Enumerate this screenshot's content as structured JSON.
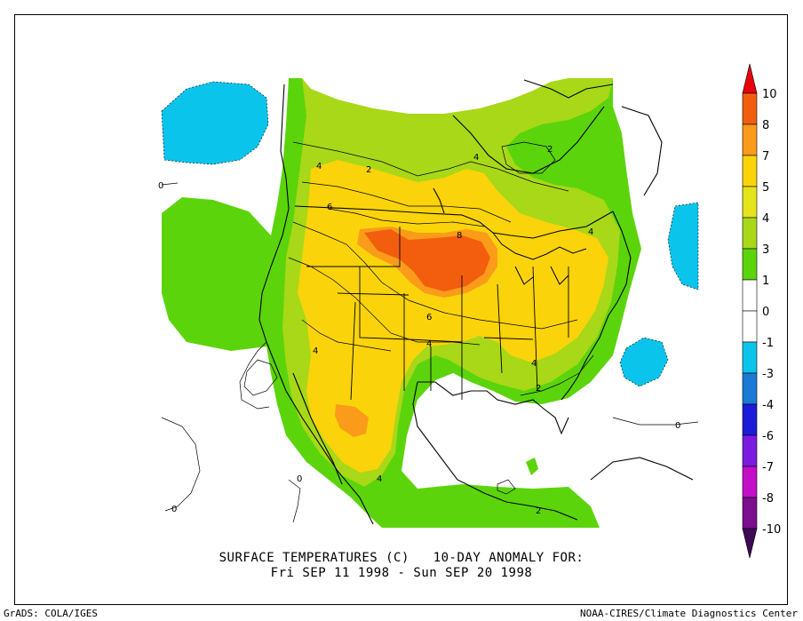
{
  "title": {
    "line1": "SURFACE TEMPERATURES (C)   10-DAY ANOMALY FOR:",
    "line2": "Fri SEP 11 1998 - Sun SEP 20 1998"
  },
  "footer": {
    "left": "GrADS: COLA/IGES",
    "right": "NOAA-CIRES/Climate Diagnostics Center"
  },
  "colorbar": {
    "levels": [
      {
        "label": "10",
        "color": "#e8000a"
      },
      {
        "label": "8",
        "color": "#f25e0d"
      },
      {
        "label": "7",
        "color": "#fa9b1a"
      },
      {
        "label": "5",
        "color": "#fbd30a"
      },
      {
        "label": "4",
        "color": "#e4e41a"
      },
      {
        "label": "3",
        "color": "#a8d817"
      },
      {
        "label": "1",
        "color": "#5bd40b"
      },
      {
        "label": "0",
        "color": "#ffffff"
      },
      {
        "label": "-1",
        "color": "#ffffff"
      },
      {
        "label": "-3",
        "color": "#0bc4ec"
      },
      {
        "label": "-4",
        "color": "#1a7ad6"
      },
      {
        "label": "-6",
        "color": "#1c1bd8"
      },
      {
        "label": "-7",
        "color": "#7a1be0"
      },
      {
        "label": "-8",
        "color": "#c20fc6"
      },
      {
        "label": "-10",
        "color": "#7a0e8c"
      }
    ],
    "top_arrow_color": "#e8000a",
    "bottom_arrow_color": "#3d0a55"
  },
  "contour_labels": [
    "4",
    "2",
    "4",
    "2",
    "6",
    "8",
    "4",
    "6",
    "4",
    "4",
    "4",
    "2",
    "4",
    "2",
    "0",
    "0",
    "0",
    "0"
  ]
}
